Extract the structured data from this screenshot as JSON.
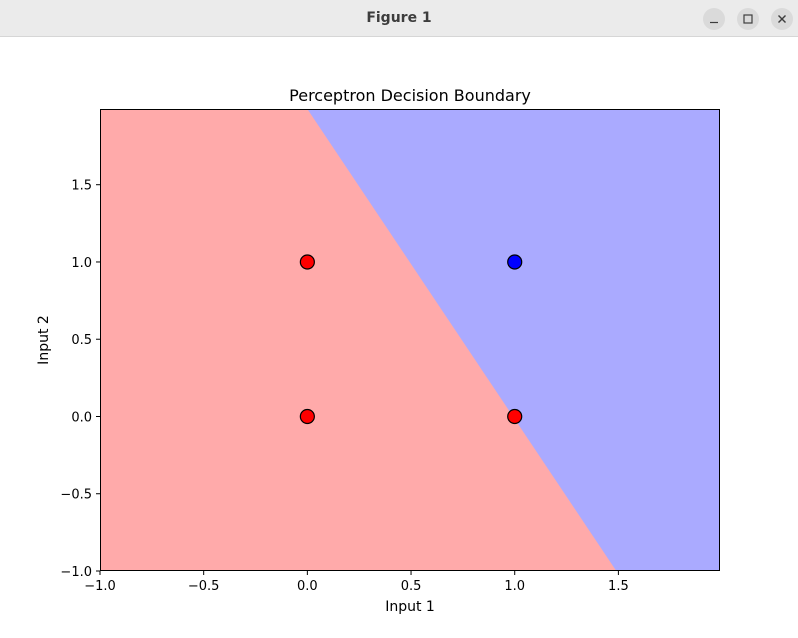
{
  "window": {
    "title": "Figure 1",
    "buttons": [
      "minimize",
      "maximize",
      "close"
    ]
  },
  "chart_data": {
    "type": "scatter",
    "title": "Perceptron Decision Boundary",
    "xlabel": "Input 1",
    "ylabel": "Input 2",
    "xlim": [
      -1.0,
      1.99
    ],
    "ylim": [
      -1.0,
      1.99
    ],
    "xticks": [
      -1.0,
      -0.5,
      0.0,
      0.5,
      1.0,
      1.5
    ],
    "xtick_labels": [
      "−1.0",
      "−0.5",
      "0.0",
      "0.5",
      "1.0",
      "1.5"
    ],
    "yticks": [
      -1.0,
      -0.5,
      0.0,
      0.5,
      1.0,
      1.5
    ],
    "ytick_labels": [
      "−1.0",
      "−0.5",
      "0.0",
      "0.5",
      "1.0",
      "1.5"
    ],
    "grid": false,
    "decision_boundary": {
      "line_through": [
        [
          0.0,
          1.99
        ],
        [
          1.49,
          -1.0
        ]
      ],
      "class_0_region_color": "#ffaaaa",
      "class_1_region_color": "#aaaaff"
    },
    "points": [
      {
        "x": 0,
        "y": 0,
        "class": 0,
        "color": "#ff0000"
      },
      {
        "x": 0,
        "y": 1,
        "class": 0,
        "color": "#ff0000"
      },
      {
        "x": 1,
        "y": 0,
        "class": 0,
        "color": "#ff0000"
      },
      {
        "x": 1,
        "y": 1,
        "class": 1,
        "color": "#0000ff"
      }
    ],
    "point_edge_color": "#000000"
  }
}
